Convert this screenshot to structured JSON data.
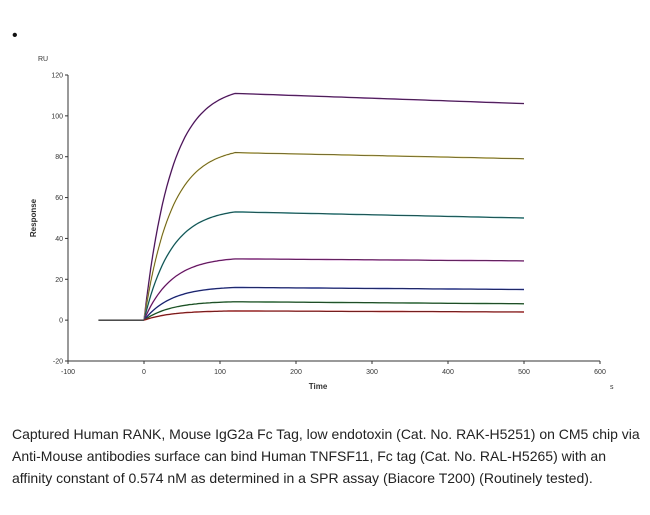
{
  "bullet": "•",
  "chart_data": {
    "type": "line",
    "ylabel_unit": "RU",
    "ylabel": "Response",
    "xlabel": "Time",
    "xlabel_unit": "s",
    "xlim": [
      -100,
      600
    ],
    "ylim": [
      -20,
      120
    ],
    "xticks": [
      -100,
      0,
      100,
      200,
      300,
      400,
      500,
      600
    ],
    "yticks": [
      -20,
      0,
      20,
      40,
      60,
      80,
      100,
      120
    ],
    "baseline_start": -60,
    "association_start": 0,
    "dissociation_start": 120,
    "end": 500,
    "series": [
      {
        "color": "#7b2d8e",
        "plateau": 111,
        "end_value": 106
      },
      {
        "color": "#c8b84a",
        "plateau": 82,
        "end_value": 79
      },
      {
        "color": "#2a8a8a",
        "plateau": 53,
        "end_value": 50
      },
      {
        "color": "#a0309a",
        "plateau": 30,
        "end_value": 29
      },
      {
        "color": "#2b3aa8",
        "plateau": 16,
        "end_value": 15
      },
      {
        "color": "#2d7a3a",
        "plateau": 9,
        "end_value": 8
      },
      {
        "color": "#c02828",
        "plateau": 4.5,
        "end_value": 4
      }
    ]
  },
  "caption": "Captured Human RANK, Mouse IgG2a Fc Tag, low endotoxin (Cat. No. RAK-H5251) on CM5 chip via Anti-Mouse antibodies surface can bind Human TNFSF11, Fc tag (Cat. No. RAL-H5265) with an affinity constant of 0.574 nM as determined in a SPR assay (Biacore T200) (Routinely tested)."
}
